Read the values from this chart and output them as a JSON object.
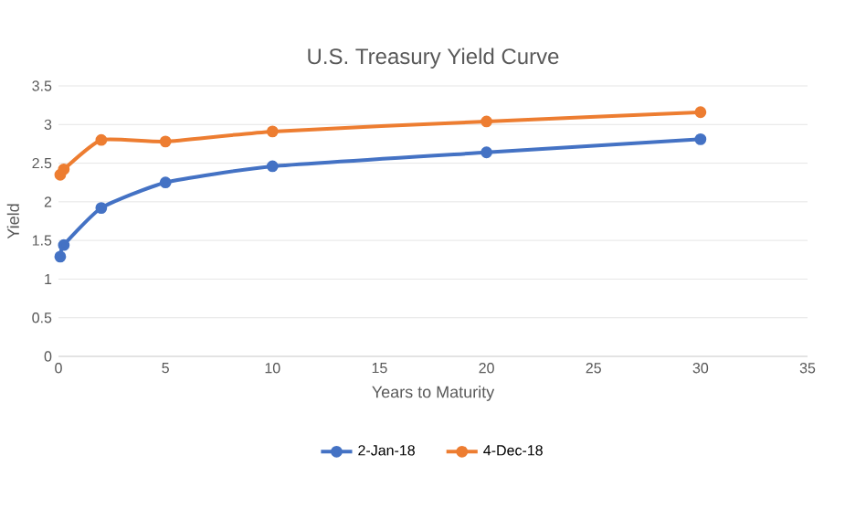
{
  "chart_data": {
    "type": "line",
    "title": "U.S. Treasury Yield Curve",
    "xlabel": "Years to Maturity",
    "ylabel": "Yield",
    "series": [
      {
        "name": "2-Jan-18",
        "color": "#4472c4",
        "x": [
          0.083,
          0.25,
          2,
          5,
          10,
          20,
          30
        ],
        "values": [
          1.29,
          1.44,
          1.92,
          2.25,
          2.46,
          2.64,
          2.81
        ]
      },
      {
        "name": "4-Dec-18",
        "color": "#ed7d31",
        "x": [
          0.083,
          0.25,
          2,
          5,
          10,
          20,
          30
        ],
        "values": [
          2.35,
          2.42,
          2.8,
          2.78,
          2.91,
          3.04,
          3.16
        ]
      }
    ],
    "xlim": [
      0,
      35
    ],
    "xticks": [
      0,
      5,
      10,
      15,
      20,
      25,
      30,
      35
    ],
    "ylim": [
      0,
      3.5
    ],
    "yticks": [
      0,
      0.5,
      1,
      1.5,
      2,
      2.5,
      3,
      3.5
    ],
    "grid": "y",
    "legend": "bottom",
    "marker": "circle",
    "line_style": "solid"
  }
}
